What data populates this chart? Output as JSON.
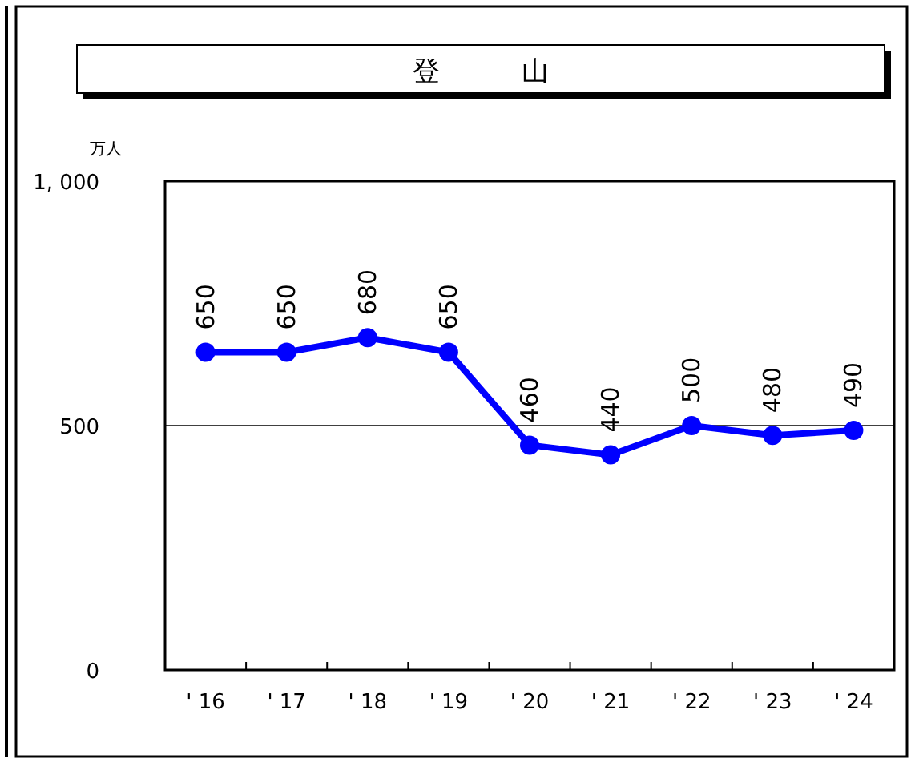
{
  "chart_data": {
    "type": "line",
    "title": "登　　　山",
    "ylabel": "万人",
    "categories": [
      "' 16",
      "' 17",
      "' 18",
      "' 19",
      "' 20",
      "' 21",
      "' 22",
      "' 23",
      "' 24"
    ],
    "series": [
      {
        "color": "#0000ff",
        "values": [
          650,
          650,
          680,
          650,
          460,
          440,
          500,
          480,
          490
        ]
      }
    ],
    "ylim": [
      0,
      1000
    ],
    "yticks": [
      0,
      500,
      {
        "value": 1000,
        "label": "1, 000"
      }
    ],
    "grid": "y",
    "marker": "circle",
    "data_labels": true
  }
}
